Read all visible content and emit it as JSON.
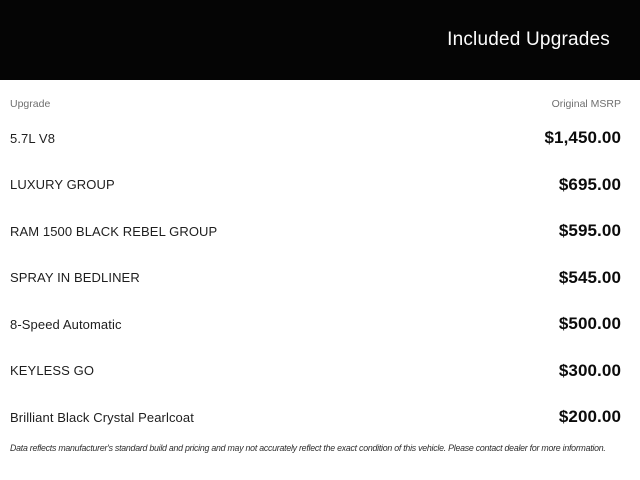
{
  "banner": {
    "title": "Included Upgrades"
  },
  "table": {
    "columns": [
      "Upgrade",
      "Original MSRP"
    ],
    "rows": [
      {
        "upgrade": "5.7L V8",
        "msrp": "$1,450.00"
      },
      {
        "upgrade": "LUXURY GROUP",
        "msrp": "$695.00"
      },
      {
        "upgrade": "RAM 1500 BLACK REBEL GROUP",
        "msrp": "$595.00"
      },
      {
        "upgrade": "SPRAY IN BEDLINER",
        "msrp": "$545.00"
      },
      {
        "upgrade": "8-Speed Automatic",
        "msrp": "$500.00"
      },
      {
        "upgrade": "KEYLESS GO",
        "msrp": "$300.00"
      },
      {
        "upgrade": "Brilliant Black Crystal Pearlcoat",
        "msrp": "$200.00"
      }
    ]
  },
  "disclaimer": "Data reflects manufacturer's standard build and pricing and may not accurately reflect the exact condition of this vehicle. Please contact dealer for more information.",
  "colors": {
    "banner_bg": "#050505",
    "banner_text": "#fdfdfd",
    "column_header_text": "#6f6f6f",
    "row_label_text": "#1e1e1e",
    "price_text": "#0b0b0b",
    "page_bg": "#ffffff"
  }
}
